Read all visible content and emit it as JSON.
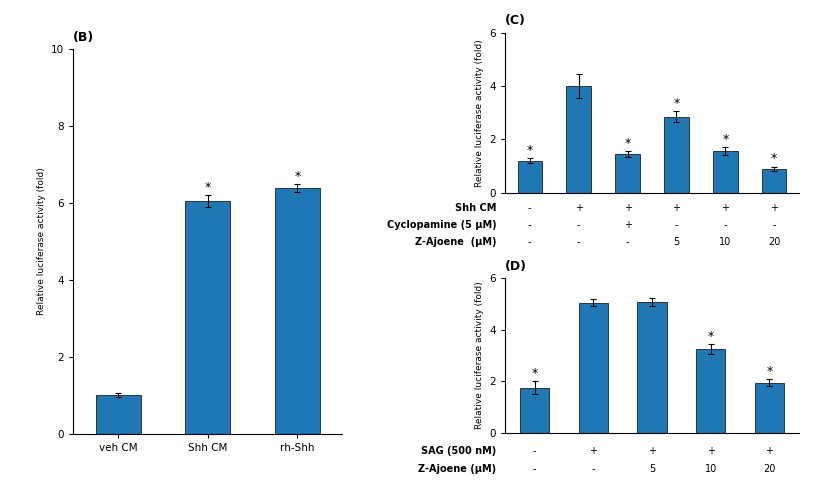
{
  "chart_data": [
    {
      "type": "bar",
      "title": "(B)",
      "categories": [
        "veh CM",
        "Shh CM",
        "rh-Shh"
      ],
      "values": [
        1.0,
        6.05,
        6.4
      ],
      "errors": [
        0.05,
        0.15,
        0.1
      ],
      "annotations": [
        null,
        "*",
        "*"
      ],
      "ylabel": "Relative luciferase activity (fold)",
      "ylim": [
        0,
        10
      ],
      "yticks": [
        0,
        2,
        4,
        6,
        8,
        10
      ]
    },
    {
      "type": "bar",
      "title": "(C)",
      "values": [
        1.2,
        4.0,
        1.45,
        2.85,
        1.55,
        0.9
      ],
      "errors": [
        0.1,
        0.45,
        0.1,
        0.2,
        0.15,
        0.07
      ],
      "annotations": [
        "*",
        null,
        "*",
        "*",
        "*",
        "*"
      ],
      "ylabel": "Relative luciferase activity (fold)",
      "ylim": [
        0,
        6
      ],
      "yticks": [
        0,
        2,
        4,
        6
      ],
      "tick_labels": "y",
      "table": [
        {
          "label": "Shh CM",
          "values": [
            "-",
            "+",
            "+",
            "+",
            "+",
            "+"
          ]
        },
        {
          "label": "Cyclopamine (5 μM)",
          "values": [
            "-",
            "-",
            "+",
            "-",
            "-",
            "-"
          ]
        },
        {
          "label": "Z-Ajoene  (μM)",
          "values": [
            "-",
            "-",
            "-",
            "5",
            "10",
            "20"
          ]
        }
      ]
    },
    {
      "type": "bar",
      "title": "(D)",
      "values": [
        1.75,
        5.05,
        5.08,
        3.25,
        1.95
      ],
      "errors": [
        0.25,
        0.15,
        0.15,
        0.18,
        0.12
      ],
      "annotations": [
        "*",
        null,
        null,
        "*",
        "*"
      ],
      "ylabel": "Relative luciferase activity (fold)",
      "ylim": [
        0,
        6
      ],
      "yticks": [
        0,
        2,
        4,
        6
      ],
      "tick_labels": "y",
      "table": [
        {
          "label": "SAG (500 nM)",
          "values": [
            "-",
            "+",
            "+",
            "+",
            "+"
          ]
        },
        {
          "label": "Z-Ajoene (μM)",
          "values": [
            "-",
            "-",
            "5",
            "10",
            "20"
          ]
        }
      ]
    }
  ]
}
